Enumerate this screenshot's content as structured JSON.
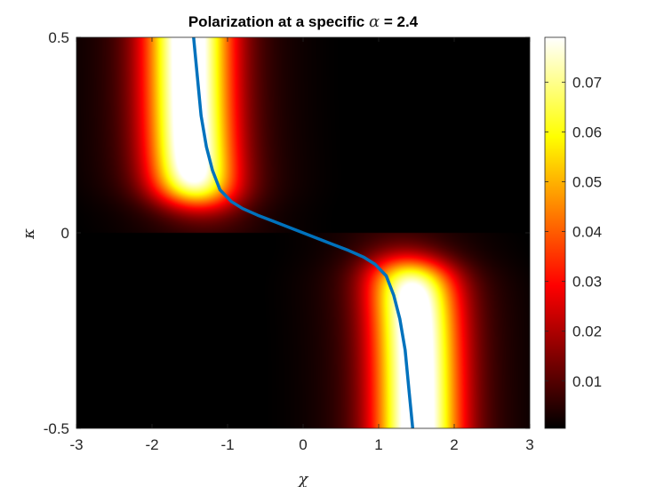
{
  "chart_data": {
    "type": "heatmap",
    "title_prefix": "Polarization at a specific ",
    "title_symbol": "α",
    "title_suffix": " = 2.4",
    "alpha": 2.4,
    "xlabel": "χ",
    "ylabel": "κ",
    "xlim": [
      -3,
      3
    ],
    "ylim": [
      -0.5,
      0.5
    ],
    "x_ticks": [
      -3,
      -2,
      -1,
      0,
      1,
      2,
      3
    ],
    "x_tick_labels": [
      "-3",
      "-2",
      "-1",
      "0",
      "1",
      "2",
      "3"
    ],
    "y_ticks": [
      -0.5,
      0,
      0.5
    ],
    "y_tick_labels": [
      "-0.5",
      "0",
      "0.5"
    ],
    "colormap": "hot",
    "colorbar": {
      "range": [
        0.0005,
        0.079
      ],
      "ticks": [
        0.01,
        0.02,
        0.03,
        0.04,
        0.05,
        0.06,
        0.07
      ],
      "tick_labels": [
        "0.01",
        "0.02",
        "0.03",
        "0.04",
        "0.05",
        "0.06",
        "0.07"
      ]
    },
    "field": {
      "description": "Two bright bands: one near chi=-1.5 for kappa>0.1, one near chi=1.5 for kappa<-0.1",
      "band_centers_upper": [
        [
          0.5,
          -1.55
        ],
        [
          0.3,
          -1.5
        ],
        [
          0.2,
          -1.45
        ],
        [
          0.1,
          -1.35
        ]
      ],
      "band_centers_lower": [
        [
          -0.1,
          1.35
        ],
        [
          -0.2,
          1.45
        ],
        [
          -0.3,
          1.5
        ],
        [
          -0.5,
          1.55
        ]
      ]
    },
    "curve": {
      "color": "#0072BD",
      "points": [
        [
          -1.45,
          0.5
        ],
        [
          -1.4,
          0.4
        ],
        [
          -1.35,
          0.3
        ],
        [
          -1.28,
          0.22
        ],
        [
          -1.2,
          0.16
        ],
        [
          -1.1,
          0.11
        ],
        [
          -0.95,
          0.08
        ],
        [
          -0.8,
          0.062
        ],
        [
          -0.6,
          0.045
        ],
        [
          -0.4,
          0.03
        ],
        [
          -0.2,
          0.015
        ],
        [
          0.0,
          0.0
        ],
        [
          0.2,
          -0.015
        ],
        [
          0.4,
          -0.03
        ],
        [
          0.6,
          -0.045
        ],
        [
          0.8,
          -0.062
        ],
        [
          0.95,
          -0.08
        ],
        [
          1.1,
          -0.11
        ],
        [
          1.2,
          -0.16
        ],
        [
          1.28,
          -0.22
        ],
        [
          1.35,
          -0.3
        ],
        [
          1.4,
          -0.4
        ],
        [
          1.45,
          -0.5
        ]
      ]
    }
  }
}
